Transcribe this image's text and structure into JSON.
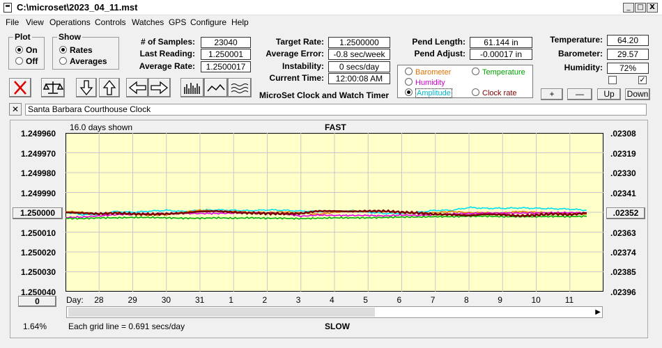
{
  "window": {
    "title": "C:\\microset\\2023_04_11.mst",
    "min_glyph": "_",
    "max_glyph": "□",
    "close_glyph": "X"
  },
  "menu": [
    "File",
    "View",
    "Operations",
    "Controls",
    "Watches",
    "GPS",
    "Configure",
    "Help"
  ],
  "plot_group": {
    "legend": "Plot",
    "options": [
      "On",
      "Off"
    ],
    "selected": "On"
  },
  "show_group": {
    "legend": "Show",
    "options": [
      "Rates",
      "Averages"
    ],
    "selected": "Rates"
  },
  "stats": {
    "samples_label": "# of Samples:",
    "samples_value": "23040",
    "last_reading_label": "Last Reading:",
    "last_reading_value": "1.250001",
    "average_rate_label": "Average Rate:",
    "average_rate_value": "1.2500017"
  },
  "targets": {
    "target_rate_label": "Target Rate:",
    "target_rate_value": "1.2500000",
    "average_error_label": "Average Error:",
    "average_error_value": "-0.8 sec/week",
    "instability_label": "Instability:",
    "instability_value": "0 secs/day",
    "current_time_label": "Current Time:",
    "current_time_value": "12:00:08 AM"
  },
  "app_name": "MicroSet Clock and Watch Timer",
  "pendulum": {
    "length_label": "Pend Length:",
    "length_value": "61.144 in",
    "adjust_label": "Pend Adjust:",
    "adjust_value": "-0.00017 in"
  },
  "environment": {
    "temperature_label": "Temperature:",
    "temperature_value": "64.20",
    "barometer_label": "Barometer:",
    "barometer_value": "29.57",
    "humidity_label": "Humidity:",
    "humidity_value": "72%"
  },
  "checkboxes": [
    false,
    true
  ],
  "scale_buttons": [
    "+",
    "—",
    "Up",
    "Down"
  ],
  "legend_options": [
    {
      "label": "Barometer",
      "color": "#e07000",
      "selected": false
    },
    {
      "label": "Temperature",
      "color": "#00a000",
      "selected": false
    },
    {
      "label": "Humidity",
      "color": "#d000d0",
      "selected": false
    },
    {
      "label": "Clock rate",
      "color": "#800000",
      "selected": false
    },
    {
      "label": "Amplitude",
      "color": "#00c8d8",
      "selected": true
    }
  ],
  "toolbar_icons": [
    "clear-icon",
    "balance-icon",
    "arrow-down-icon",
    "arrow-up-icon",
    "arrow-left-icon",
    "arrow-right-icon",
    "bar-graph-icon",
    "wave-icon",
    "ripple-icon"
  ],
  "clock_name": "Santa Barbara Courthouse Clock",
  "chart_labels": {
    "days_shown": "16.0 days shown",
    "fast": "FAST",
    "slow": "SLOW",
    "day_prefix": "Day:",
    "grid_note": "Each grid line = 0.691 secs/day",
    "percent": "1.64%",
    "left_button": "0",
    "left_center_button": "1.250000",
    "right_center_button": ".02352"
  },
  "colors": {
    "plot_bg": "#ffffc8",
    "grid": "#c8c8c8",
    "amplitude": "#00e0f0",
    "barometer": "#e08000",
    "humidity": "#e000e0",
    "temperature": "#00b000",
    "clock_rate": "#7a0000"
  },
  "chart_data": {
    "type": "line",
    "y_left_ticks": [
      "1.249960",
      "1.249970",
      "1.249980",
      "1.249990",
      "1.250000",
      "1.250010",
      "1.250020",
      "1.250030",
      "1.250040"
    ],
    "y_right_ticks": [
      ".02308",
      ".02319",
      ".02330",
      ".02341",
      ".02352",
      ".02363",
      ".02374",
      ".02385",
      ".02396"
    ],
    "x_day_labels": [
      "28",
      "29",
      "30",
      "31",
      "1",
      "2",
      "3",
      "4",
      "5",
      "6",
      "7",
      "8",
      "9",
      "10",
      "11"
    ],
    "x_range": [
      27.0,
      43.0
    ],
    "series": [
      {
        "name": "Amplitude",
        "color": "#00e0f0",
        "x": [
          27,
          27.5,
          28,
          28.5,
          29,
          29.5,
          30,
          30.5,
          31,
          31.5,
          32,
          32.5,
          33,
          33.5,
          34,
          34.5,
          35,
          35.5,
          36,
          36.5,
          37,
          37.5,
          38,
          38.5,
          39,
          39.5,
          40,
          40.5,
          41,
          41.5,
          42,
          42.5
        ],
        "values": [
          1.25,
          1.2500012,
          1.250001,
          1.2499996,
          1.25,
          1.2499994,
          1.249999,
          1.2499996,
          1.249999,
          1.2499988,
          1.249999,
          1.2499992,
          1.2499988,
          1.249999,
          1.2499994,
          1.2499996,
          1.2499996,
          1.2499992,
          1.25,
          1.2500006,
          1.2500006,
          1.25,
          1.249999,
          1.249999,
          1.2499976,
          1.249998,
          1.249998,
          1.2499978,
          1.249998,
          1.2499982,
          1.2499984,
          1.249999
        ]
      },
      {
        "name": "Barometer",
        "color": "#e08000",
        "x": [
          27,
          27.5,
          28,
          28.5,
          29,
          29.5,
          30,
          30.5,
          31,
          31.5,
          32,
          32.5,
          33,
          33.5,
          34,
          34.5,
          35,
          35.5,
          36,
          36.5,
          37,
          37.5,
          38,
          38.5,
          39,
          39.5,
          40,
          40.5,
          41,
          41.5,
          42,
          42.5
        ],
        "values": [
          1.2499996,
          1.25,
          1.2500008,
          1.2500002,
          1.250001,
          1.2500014,
          1.2500012,
          1.25,
          1.249999,
          1.2499994,
          1.2499996,
          1.25,
          1.2500002,
          1.2499998,
          1.2500004,
          1.250001,
          1.25,
          1.2499994,
          1.2499996,
          1.2499996,
          1.25,
          1.2500004,
          1.2500002,
          1.2499996,
          1.2500002,
          1.2500002,
          1.2500004,
          1.2499996,
          1.25,
          1.2500004,
          1.2500006,
          1.250001
        ]
      },
      {
        "name": "Humidity",
        "color": "#e000e0",
        "x": [
          27,
          27.5,
          28,
          28.5,
          29,
          29.5,
          30,
          30.5,
          31,
          31.5,
          32,
          32.5,
          33,
          33.5,
          34,
          34.5,
          35,
          35.5,
          36,
          36.5,
          37,
          37.5,
          38,
          38.5,
          39,
          39.5,
          40,
          40.5,
          41,
          41.5,
          42,
          42.5
        ],
        "values": [
          1.2500026,
          1.2500024,
          1.2500018,
          1.2500012,
          1.250001,
          1.2500008,
          1.2500008,
          1.2500006,
          1.2500006,
          1.2500006,
          1.2500004,
          1.2500002,
          1.2500004,
          1.2500006,
          1.250002,
          1.2500014,
          1.2500016,
          1.2500016,
          1.2500016,
          1.2500018,
          1.2500014,
          1.2500016,
          1.2500012,
          1.2500008,
          1.2500006,
          1.2500004,
          1.2500004,
          1.2500004,
          1.2500004,
          1.2500002,
          1.2500002,
          1.2500002
        ]
      },
      {
        "name": "Temperature",
        "color": "#00b000",
        "x": [
          27,
          27.5,
          28,
          28.5,
          29,
          29.5,
          30,
          30.5,
          31,
          31.5,
          32,
          32.5,
          33,
          33.5,
          34,
          34.5,
          35,
          35.5,
          36,
          36.5,
          37,
          37.5,
          38,
          38.5,
          39,
          39.5,
          40,
          40.5,
          41,
          41.5,
          42,
          42.5
        ],
        "values": [
          1.250003,
          1.2500032,
          1.2500028,
          1.2500028,
          1.2500026,
          1.2500026,
          1.2500028,
          1.250003,
          1.250003,
          1.2500028,
          1.250003,
          1.2500028,
          1.250003,
          1.250003,
          1.2500032,
          1.250003,
          1.2500028,
          1.2500028,
          1.2500028,
          1.2500026,
          1.2500024,
          1.2500024,
          1.2500022,
          1.2500022,
          1.250002,
          1.250002,
          1.2500022,
          1.2500022,
          1.2500022,
          1.2500021,
          1.2500022,
          1.250002
        ]
      },
      {
        "name": "Clock rate",
        "color": "#7a0000",
        "x": [
          27,
          27.5,
          28,
          28.5,
          29,
          29.5,
          30,
          30.5,
          31,
          31.5,
          32,
          32.5,
          33,
          33.5,
          34,
          34.5,
          35,
          35.5,
          36,
          36.5,
          37,
          37.5,
          38,
          38.5,
          39,
          39.5,
          40,
          40.5,
          41,
          41.5,
          42,
          42.5
        ],
        "values": [
          1.25,
          1.2500004,
          1.2500008,
          1.2500004,
          1.2500008,
          1.250001,
          1.2500008,
          1.2500004,
          1.2499996,
          1.2499994,
          1.25,
          1.2500004,
          1.2500006,
          1.2500008,
          1.2500006,
          1.2499994,
          1.2499994,
          1.2499996,
          1.2499994,
          1.2499994,
          1.25,
          1.2500004,
          1.250001,
          1.2500012,
          1.2500016,
          1.250001,
          1.2500012,
          1.2500018,
          1.2500014,
          1.2500008,
          1.2500012,
          1.2500004
        ]
      }
    ]
  }
}
